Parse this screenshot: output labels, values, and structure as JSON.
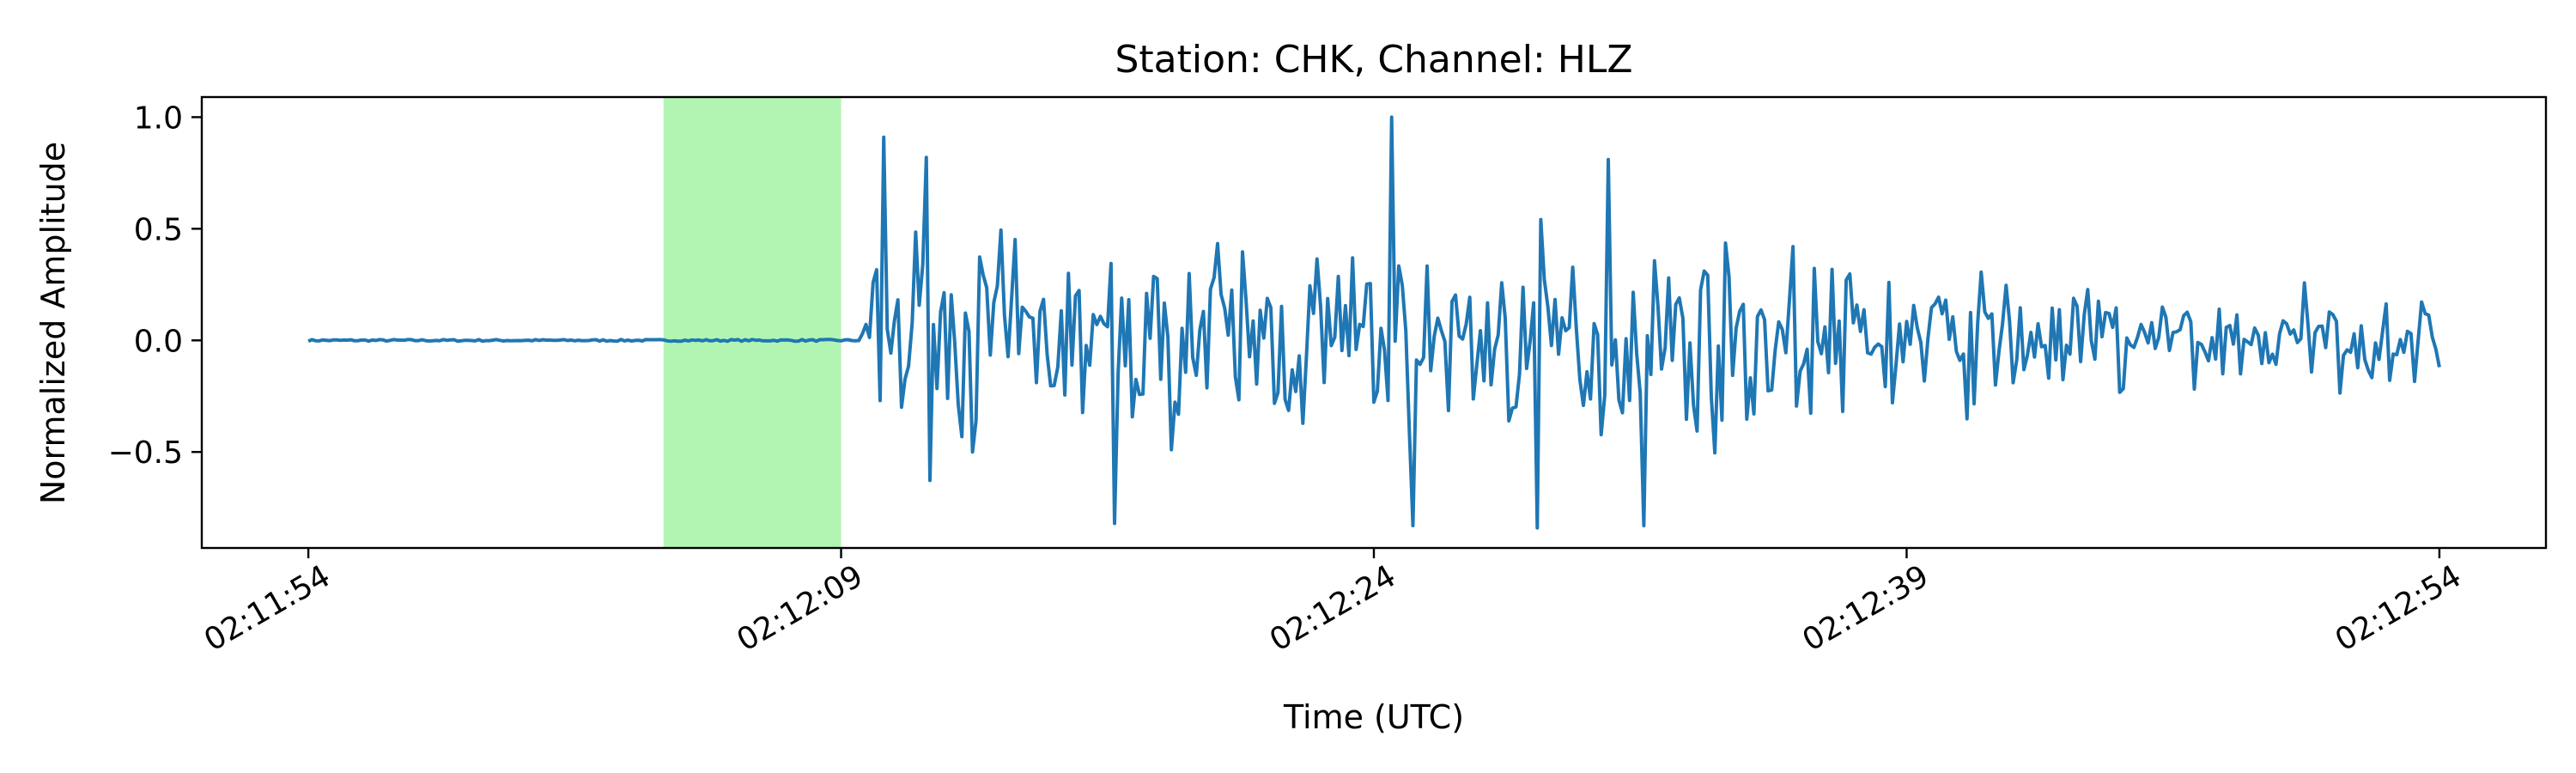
{
  "chart_data": {
    "type": "line",
    "title": "Station: CHK, Channel: HLZ",
    "xlabel": "Time (UTC)",
    "ylabel": "Normalized Amplitude",
    "x_start": "02:11:54",
    "x_end": "02:12:54",
    "xlim": [
      "02:11:51",
      "02:12:57"
    ],
    "ylim": [
      -0.93,
      1.09
    ],
    "x_ticks": [
      "02:11:54",
      "02:12:09",
      "02:12:24",
      "02:12:39",
      "02:12:54"
    ],
    "y_ticks": [
      1.0,
      0.5,
      0.0,
      -0.5
    ],
    "y_tick_labels": [
      "1.0",
      "0.5",
      "0.0",
      "−0.5"
    ],
    "highlight": {
      "start": "02:12:04",
      "end": "02:12:09",
      "color": "#b2f5b2"
    },
    "series": [
      {
        "color": "#1f77b4",
        "sample_interval_s": 0.1,
        "peaks": [
          {
            "t": "02:12:10.2",
            "value": 0.91
          },
          {
            "t": "02:12:11.4",
            "value": 0.82
          },
          {
            "t": "02:12:24.5",
            "value": 1.0
          },
          {
            "t": "02:12:30.6",
            "value": 0.81
          },
          {
            "t": "02:12:25.1",
            "value": -0.83
          },
          {
            "t": "02:12:28.6",
            "value": -0.84
          },
          {
            "t": "02:12:31.6",
            "value": -0.83
          },
          {
            "t": "02:12:16.7",
            "value": -0.82
          }
        ]
      }
    ],
    "grid": false,
    "legend": "none"
  }
}
